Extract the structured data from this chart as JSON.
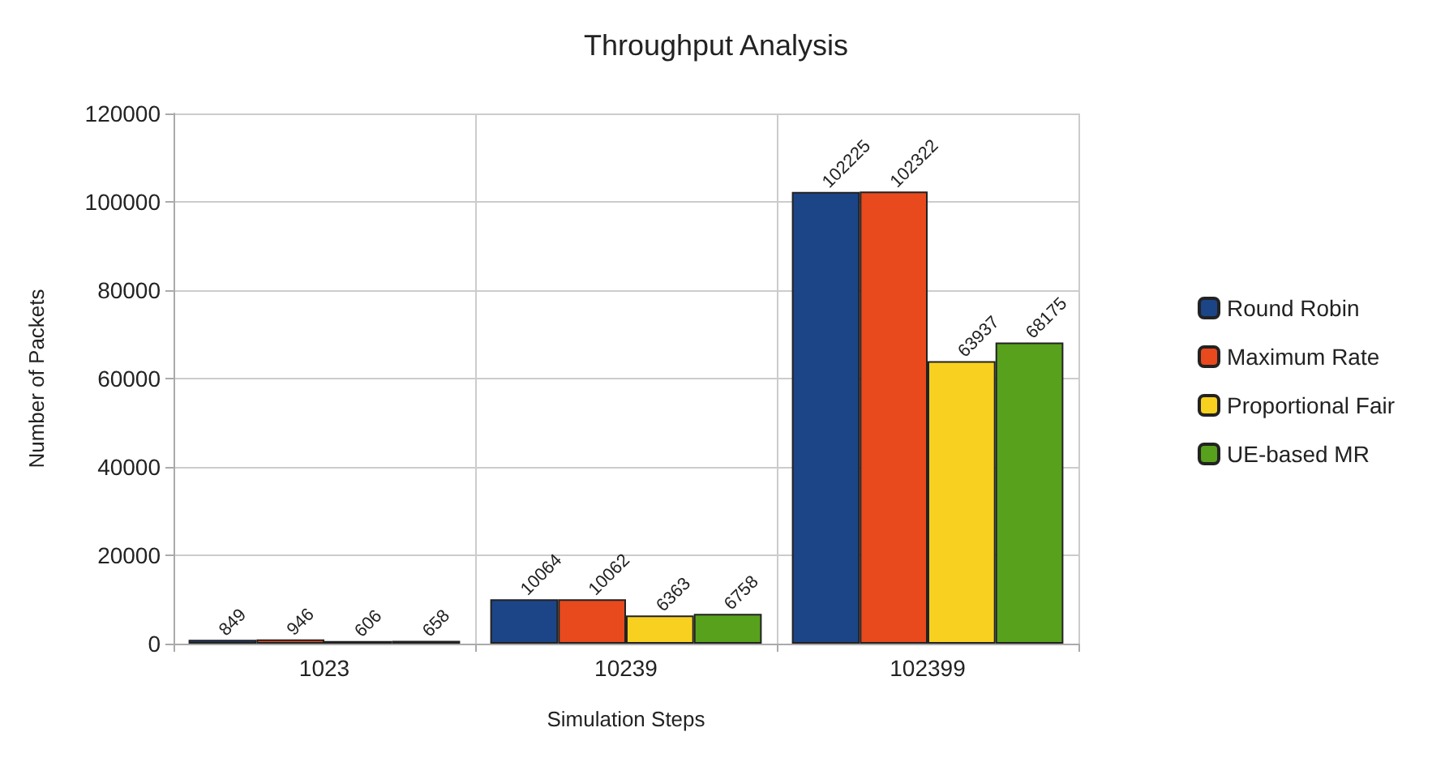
{
  "chart_data": {
    "type": "bar",
    "title": "Throughput Analysis",
    "xlabel": "Simulation Steps",
    "ylabel": "Number of Packets",
    "categories": [
      "1023",
      "10239",
      "102399"
    ],
    "series": [
      {
        "name": "Round Robin",
        "color": "#1c4587",
        "values": [
          849,
          10064,
          102225
        ]
      },
      {
        "name": "Maximum Rate",
        "color": "#e8491d",
        "values": [
          946,
          10062,
          102322
        ]
      },
      {
        "name": "Proportional Fair",
        "color": "#f8d120",
        "values": [
          606,
          6363,
          63937
        ]
      },
      {
        "name": "UE-based MR",
        "color": "#57a11d",
        "values": [
          658,
          6758,
          68175
        ]
      }
    ],
    "ylim": [
      0,
      120000
    ],
    "yticks": [
      0,
      20000,
      40000,
      60000,
      80000,
      100000,
      120000
    ],
    "grid": true,
    "legend": "right",
    "data_labels": true
  }
}
